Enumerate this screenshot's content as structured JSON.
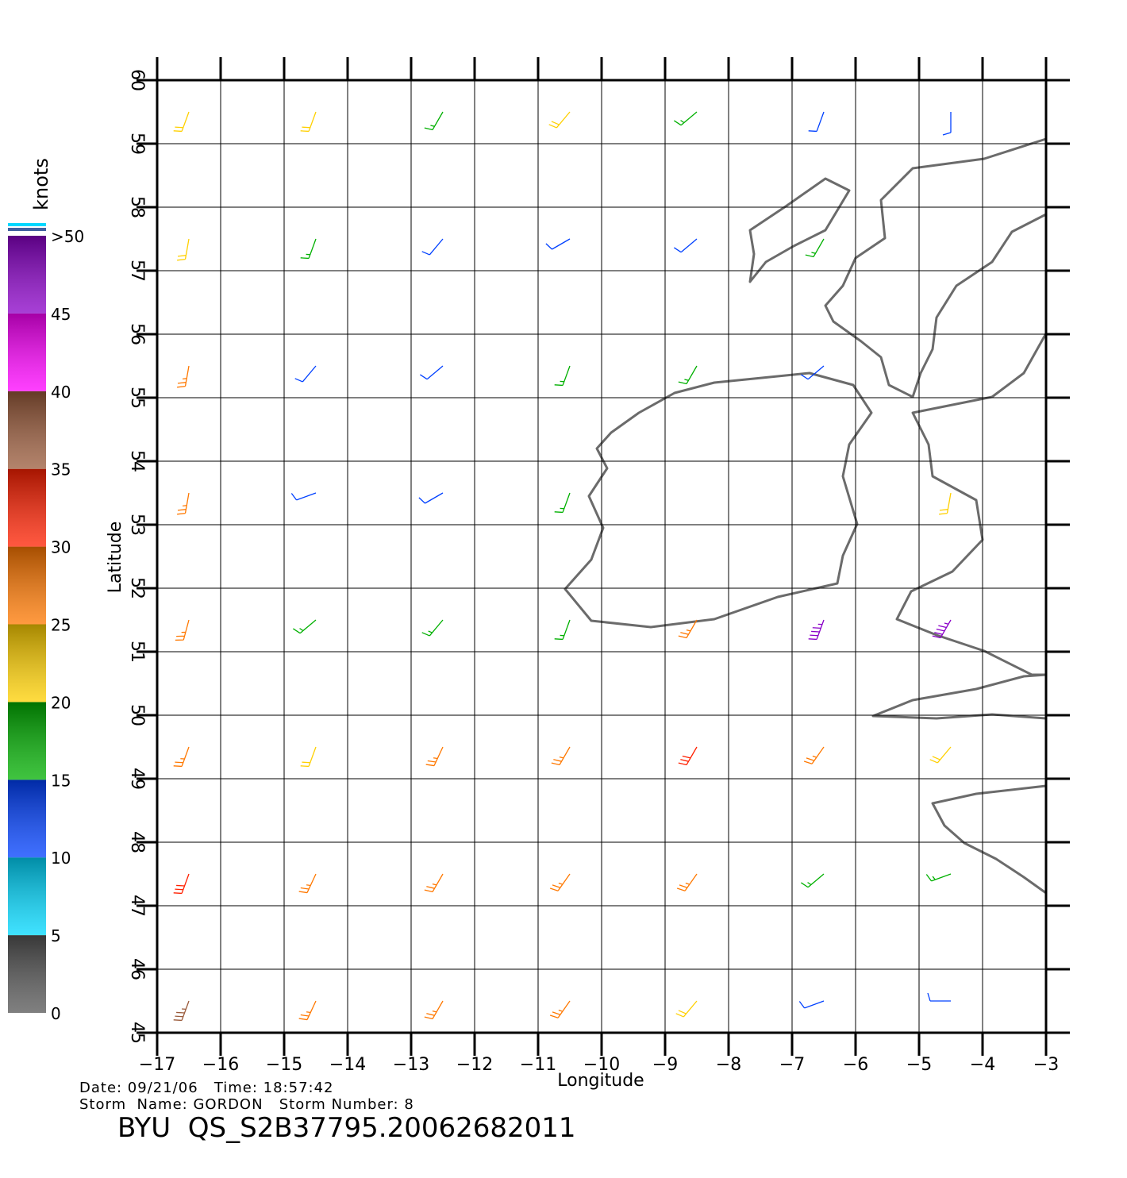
{
  "chart_data": {
    "type": "barb",
    "x_label": "Longitude",
    "y_label": "Latitude",
    "xlim": [
      -17,
      -3
    ],
    "ylim": [
      45,
      60
    ],
    "xticks": [
      {
        "value": -17,
        "label": "−17"
      },
      {
        "value": -16,
        "label": "−16"
      },
      {
        "value": -15,
        "label": "−15"
      },
      {
        "value": -14,
        "label": "−14"
      },
      {
        "value": -13,
        "label": "−13"
      },
      {
        "value": -12,
        "label": "−12"
      },
      {
        "value": -11,
        "label": "−11"
      },
      {
        "value": -10,
        "label": "−10"
      },
      {
        "value": -9,
        "label": "−9"
      },
      {
        "value": -8,
        "label": "−8"
      },
      {
        "value": -7,
        "label": "−7"
      },
      {
        "value": -6,
        "label": "−6"
      },
      {
        "value": -5,
        "label": "−5"
      },
      {
        "value": -4,
        "label": "−4"
      },
      {
        "value": -3,
        "label": "−3"
      }
    ],
    "yticks": [
      45,
      46,
      47,
      48,
      49,
      50,
      51,
      52,
      53,
      54,
      55,
      56,
      57,
      58,
      59,
      60
    ],
    "grid": true,
    "colorbar": {
      "title": "knots",
      "clim": [
        0,
        50
      ],
      "ticks": [
        0,
        5,
        10,
        15,
        20,
        25,
        30,
        35,
        40,
        45,
        {
          "value": 50,
          "label": ">50"
        }
      ],
      "colors": [
        "#555555",
        "#00d8ff",
        "#0040ff",
        "#00b000",
        "#ffd000",
        "#ff7800",
        "#ff2000",
        "#9a5a3a",
        "#ff00ff",
        "#8a00c8"
      ]
    },
    "barbs": [
      {
        "lon": -16.5,
        "lat": 59.5,
        "speed": 22,
        "direction": 200
      },
      {
        "lon": -14.5,
        "lat": 59.5,
        "speed": 20,
        "direction": 200
      },
      {
        "lon": -12.5,
        "lat": 59.5,
        "speed": 18,
        "direction": 210
      },
      {
        "lon": -10.5,
        "lat": 59.5,
        "speed": 20,
        "direction": 220
      },
      {
        "lon": -8.5,
        "lat": 59.5,
        "speed": 15,
        "direction": 230
      },
      {
        "lon": -6.5,
        "lat": 59.5,
        "speed": 12,
        "direction": 200
      },
      {
        "lon": -4.5,
        "lat": 59.5,
        "speed": 12,
        "direction": 180
      },
      {
        "lon": -16.5,
        "lat": 57.5,
        "speed": 22,
        "direction": 190
      },
      {
        "lon": -14.5,
        "lat": 57.5,
        "speed": 18,
        "direction": 200
      },
      {
        "lon": -12.5,
        "lat": 57.5,
        "speed": 14,
        "direction": 220
      },
      {
        "lon": -10.5,
        "lat": 57.5,
        "speed": 12,
        "direction": 240
      },
      {
        "lon": -8.5,
        "lat": 57.5,
        "speed": 12,
        "direction": 230
      },
      {
        "lon": -6.5,
        "lat": 57.5,
        "speed": 16,
        "direction": 210
      },
      {
        "lon": -16.5,
        "lat": 55.5,
        "speed": 25,
        "direction": 190
      },
      {
        "lon": -14.5,
        "lat": 55.5,
        "speed": 14,
        "direction": 220
      },
      {
        "lon": -12.5,
        "lat": 55.5,
        "speed": 14,
        "direction": 230
      },
      {
        "lon": -10.5,
        "lat": 55.5,
        "speed": 18,
        "direction": 200
      },
      {
        "lon": -8.5,
        "lat": 55.5,
        "speed": 18,
        "direction": 210
      },
      {
        "lon": -6.5,
        "lat": 55.5,
        "speed": 13,
        "direction": 230
      },
      {
        "lon": -16.5,
        "lat": 53.5,
        "speed": 28,
        "direction": 190
      },
      {
        "lon": -14.5,
        "lat": 53.5,
        "speed": 10,
        "direction": 250
      },
      {
        "lon": -12.5,
        "lat": 53.5,
        "speed": 12,
        "direction": 240
      },
      {
        "lon": -10.5,
        "lat": 53.5,
        "speed": 18,
        "direction": 200
      },
      {
        "lon": -4.5,
        "lat": 53.5,
        "speed": 20,
        "direction": 190
      },
      {
        "lon": -16.5,
        "lat": 51.5,
        "speed": 28,
        "direction": 195
      },
      {
        "lon": -14.5,
        "lat": 51.5,
        "speed": 15,
        "direction": 230
      },
      {
        "lon": -12.5,
        "lat": 51.5,
        "speed": 15,
        "direction": 220
      },
      {
        "lon": -10.5,
        "lat": 51.5,
        "speed": 18,
        "direction": 200
      },
      {
        "lon": -8.5,
        "lat": 51.5,
        "speed": 25,
        "direction": 210
      },
      {
        "lon": -6.5,
        "lat": 51.5,
        "speed": 45,
        "direction": 200
      },
      {
        "lon": -4.5,
        "lat": 51.5,
        "speed": 45,
        "direction": 210
      },
      {
        "lon": -16.5,
        "lat": 49.5,
        "speed": 28,
        "direction": 200
      },
      {
        "lon": -14.5,
        "lat": 49.5,
        "speed": 22,
        "direction": 200
      },
      {
        "lon": -12.5,
        "lat": 49.5,
        "speed": 25,
        "direction": 205
      },
      {
        "lon": -10.5,
        "lat": 49.5,
        "speed": 25,
        "direction": 210
      },
      {
        "lon": -8.5,
        "lat": 49.5,
        "speed": 30,
        "direction": 210
      },
      {
        "lon": -6.5,
        "lat": 49.5,
        "speed": 28,
        "direction": 215
      },
      {
        "lon": -4.5,
        "lat": 49.5,
        "speed": 22,
        "direction": 220
      },
      {
        "lon": -16.5,
        "lat": 47.5,
        "speed": 30,
        "direction": 200
      },
      {
        "lon": -14.5,
        "lat": 47.5,
        "speed": 25,
        "direction": 205
      },
      {
        "lon": -12.5,
        "lat": 47.5,
        "speed": 25,
        "direction": 210
      },
      {
        "lon": -10.5,
        "lat": 47.5,
        "speed": 25,
        "direction": 215
      },
      {
        "lon": -8.5,
        "lat": 47.5,
        "speed": 28,
        "direction": 215
      },
      {
        "lon": -6.5,
        "lat": 47.5,
        "speed": 18,
        "direction": 230
      },
      {
        "lon": -4.5,
        "lat": 47.5,
        "speed": 15,
        "direction": 250
      },
      {
        "lon": -16.5,
        "lat": 45.5,
        "speed": 35,
        "direction": 200
      },
      {
        "lon": -14.5,
        "lat": 45.5,
        "speed": 25,
        "direction": 205
      },
      {
        "lon": -12.5,
        "lat": 45.5,
        "speed": 25,
        "direction": 210
      },
      {
        "lon": -10.5,
        "lat": 45.5,
        "speed": 25,
        "direction": 215
      },
      {
        "lon": -8.5,
        "lat": 45.5,
        "speed": 22,
        "direction": 220
      },
      {
        "lon": -6.5,
        "lat": 45.5,
        "speed": 14,
        "direction": 250
      },
      {
        "lon": -4.5,
        "lat": 45.5,
        "speed": 12,
        "direction": 270
      }
    ]
  },
  "footer": {
    "line1": "Date: 09/21/06   Time: 18:57:42",
    "line2": "Storm  Name: GORDON   Storm Number: 8",
    "product": "BYU  QS_S2B37795.20062682011"
  }
}
